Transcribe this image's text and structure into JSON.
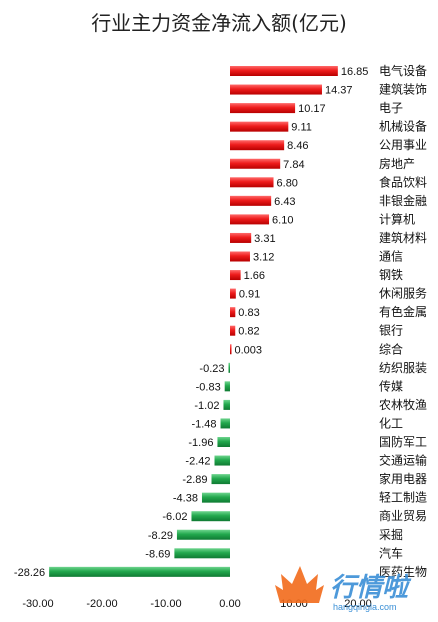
{
  "chart_data": {
    "type": "bar",
    "orientation": "horizontal",
    "title": "行业主力资金净流入额(亿元)",
    "categories": [
      "电气设备",
      "建筑装饰",
      "电子",
      "机械设备",
      "公用事业",
      "房地产",
      "食品饮料",
      "非银金融",
      "计算机",
      "建筑材料",
      "通信",
      "钢铁",
      "休闲服务",
      "有色金属",
      "银行",
      "综合",
      "纺织服装",
      "传媒",
      "农林牧渔",
      "化工",
      "国防军工",
      "交通运输",
      "家用电器",
      "轻工制造",
      "商业贸易",
      "采掘",
      "汽车",
      "医药生物"
    ],
    "values": [
      16.85,
      14.37,
      10.17,
      9.11,
      8.46,
      7.84,
      6.8,
      6.43,
      6.1,
      3.31,
      3.12,
      1.66,
      0.91,
      0.83,
      0.82,
      0.003,
      -0.23,
      -0.83,
      -1.02,
      -1.48,
      -1.96,
      -2.42,
      -2.89,
      -4.38,
      -6.02,
      -8.29,
      -8.69,
      -28.26
    ],
    "value_labels": [
      "16.85",
      "14.37",
      "10.17",
      "9.11",
      "8.46",
      "7.84",
      "6.80",
      "6.43",
      "6.10",
      "3.31",
      "3.12",
      "1.66",
      "0.91",
      "0.83",
      "0.82",
      "0.003",
      "-0.23",
      "-0.83",
      "-1.02",
      "-1.48",
      "-1.96",
      "-2.42",
      "-2.89",
      "-4.38",
      "-6.02",
      "-8.29",
      "-8.69",
      "-28.26"
    ],
    "xlim": [
      -30,
      20
    ],
    "xticks": [
      "-30.00",
      "-20.00",
      "-10.00",
      "0.00",
      "10.00",
      "20.00"
    ],
    "xtick_values": [
      -30,
      -20,
      -10,
      0,
      10,
      20
    ],
    "grid": false,
    "positive_color": "#e8141a",
    "negative_color": "#1fa24b"
  },
  "watermark": {
    "text": "行情啦",
    "sub": "hangqingla.com",
    "color": "#3a8fd6",
    "flame_color": "#f26a1b"
  }
}
